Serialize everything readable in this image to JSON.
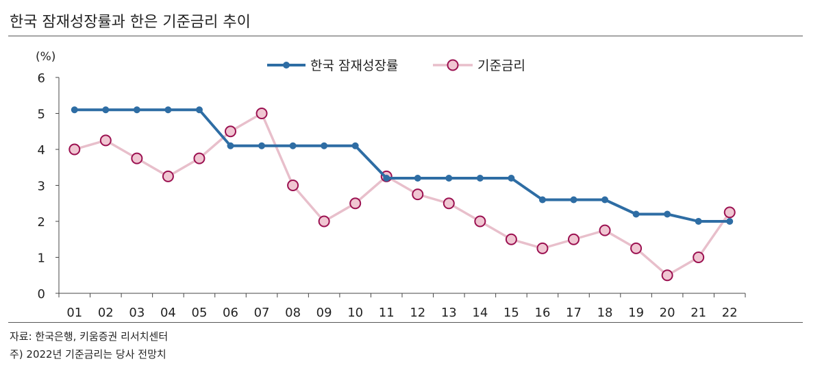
{
  "title": "한국 잠재성장률과 한은 기준금리 추이",
  "source": "자료: 한국은행, 키움증권 리서치센터",
  "note": "주) 2022년 기준금리는 당사 전망치",
  "chart_data": {
    "type": "line",
    "ylabel": "(%)",
    "ylim": [
      0,
      6
    ],
    "yticks": [
      "0",
      "1",
      "2",
      "3",
      "4",
      "5",
      "6"
    ],
    "categories": [
      "01",
      "02",
      "03",
      "04",
      "05",
      "06",
      "07",
      "08",
      "09",
      "10",
      "11",
      "12",
      "13",
      "14",
      "15",
      "16",
      "17",
      "18",
      "19",
      "20",
      "21",
      "22"
    ],
    "legend_position": "top-center",
    "grid": false,
    "series": [
      {
        "name": "한국 잠재성장률",
        "color": "#2E6DA4",
        "marker": "small-circle",
        "values": [
          5.1,
          5.1,
          5.1,
          5.1,
          5.1,
          4.1,
          4.1,
          4.1,
          4.1,
          4.1,
          3.2,
          3.2,
          3.2,
          3.2,
          3.2,
          2.6,
          2.6,
          2.6,
          2.2,
          2.2,
          2.0,
          2.0
        ]
      },
      {
        "name": "기준금리",
        "color": "#E8BFCB",
        "marker_fill": "#F0C6D2",
        "marker_edge": "#9B1050",
        "marker": "large-circle",
        "values": [
          4.0,
          4.25,
          3.75,
          3.25,
          3.75,
          4.5,
          5.0,
          3.0,
          2.0,
          2.5,
          3.25,
          2.75,
          2.5,
          2.0,
          1.5,
          1.25,
          1.5,
          1.75,
          1.25,
          0.5,
          1.0,
          2.25
        ]
      }
    ]
  }
}
